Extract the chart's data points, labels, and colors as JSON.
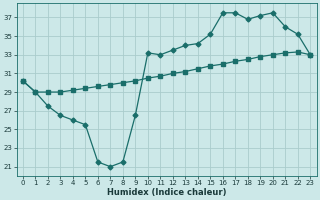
{
  "xlabel": "Humidex (Indice chaleur)",
  "background_color": "#cce8e8",
  "grid_color": "#aacccc",
  "line_color": "#1a6e6a",
  "xlim": [
    -0.5,
    23.5
  ],
  "ylim": [
    20.0,
    38.5
  ],
  "yticks": [
    21,
    23,
    25,
    27,
    29,
    31,
    33,
    35,
    37
  ],
  "xticks": [
    0,
    1,
    2,
    3,
    4,
    5,
    6,
    7,
    8,
    9,
    10,
    11,
    12,
    13,
    14,
    15,
    16,
    17,
    18,
    19,
    20,
    21,
    22,
    23
  ],
  "line1_x": [
    0,
    1,
    2,
    3,
    4,
    5,
    6,
    7,
    8,
    9,
    10,
    11,
    12,
    13,
    14,
    15,
    16,
    17,
    18,
    19,
    20,
    21,
    22,
    23
  ],
  "line1_y": [
    30.2,
    29.0,
    29.0,
    29.0,
    29.2,
    29.4,
    29.6,
    29.8,
    30.0,
    30.2,
    30.5,
    30.7,
    31.0,
    31.2,
    31.5,
    31.8,
    32.0,
    32.3,
    32.5,
    32.8,
    33.0,
    33.2,
    33.3,
    33.0
  ],
  "line2_x": [
    0,
    1,
    2,
    3,
    4,
    5,
    6,
    7,
    8,
    9,
    10,
    11,
    12,
    13,
    14,
    15,
    16,
    17,
    18,
    19,
    20,
    21,
    22,
    23
  ],
  "line2_y": [
    30.2,
    29.0,
    27.5,
    26.5,
    26.0,
    25.5,
    21.5,
    21.0,
    21.5,
    26.5,
    33.2,
    33.0,
    33.5,
    34.0,
    34.2,
    35.2,
    37.5,
    37.5,
    36.8,
    37.2,
    37.5,
    36.0,
    35.2,
    33.0
  ],
  "marker_size": 2.5,
  "linewidth": 0.9,
  "tick_fontsize": 5.0,
  "xlabel_fontsize": 6.0
}
